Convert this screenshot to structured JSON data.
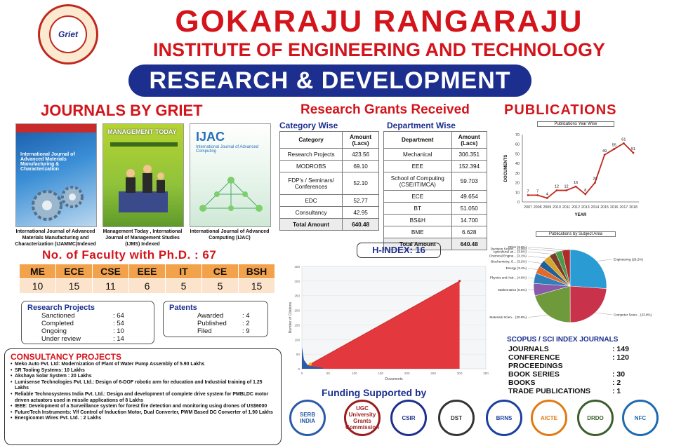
{
  "header": {
    "logo_text": "Griet",
    "title": "GOKARAJU RANGARAJU",
    "subtitle": "INSTITUTE OF ENGINEERING AND TECHNOLOGY",
    "banner": "RESEARCH & DEVELOPMENT"
  },
  "journals": {
    "heading": "JOURNALS BY GRIET",
    "covers": [
      {
        "title": "International Journal of Advanced Materials Manufacturing & Characterization",
        "caption": "International Journal of Advanced Materials Manufacturing and Characterization (IJAMMC)Indexed"
      },
      {
        "title": "MANAGEMENT TODAY",
        "caption": "Management Today , International Journal of Management Studies (IJMS) Indexed"
      },
      {
        "title": "IJAC",
        "sub": "International Journal of Advanced Computing",
        "caption": "International Journal of Advanced Computing (IJAC)"
      }
    ]
  },
  "grants": {
    "heading": "Research Grants Received",
    "category_heading": "Category Wise",
    "department_heading": "Department Wise",
    "category_table": {
      "headers": [
        "Category",
        "Amount (Lacs)"
      ],
      "rows": [
        [
          "Research Projects",
          "423.56"
        ],
        [
          "MODROBS",
          "69.10"
        ],
        [
          "FDP's / Seminars/ Conferences",
          "52.10"
        ],
        [
          "EDC",
          "52.77"
        ],
        [
          "Consultancy",
          "42.95"
        ]
      ],
      "total": [
        "Total Amount",
        "640.48"
      ]
    },
    "department_table": {
      "headers": [
        "Department",
        "Amount (Lacs)"
      ],
      "rows": [
        [
          "Mechanical",
          "306.351"
        ],
        [
          "EEE",
          "152.394"
        ],
        [
          "School of Computing (CSE/IT/MCA)",
          "59.703"
        ],
        [
          "ECE",
          "49.654"
        ],
        [
          "BT",
          "51.050"
        ],
        [
          "BS&H",
          "14.700"
        ],
        [
          "BME",
          "6.628"
        ]
      ],
      "total": [
        "Total Amount",
        "640.48"
      ]
    }
  },
  "publications": {
    "heading": "PUBLICATIONS"
  },
  "faculty": {
    "heading": "No. of Faculty with Ph.D. : 67",
    "depts": [
      "ME",
      "ECE",
      "CSE",
      "EEE",
      "IT",
      "CE",
      "BSH"
    ],
    "counts": [
      "10",
      "15",
      "11",
      "6",
      "5",
      "5",
      "15"
    ]
  },
  "research_projects": {
    "heading": "Research Projects",
    "items": [
      [
        "Sanctioned",
        ": 64"
      ],
      [
        "Completed",
        ": 54"
      ],
      [
        "Ongoing",
        ": 10"
      ],
      [
        "Under review",
        ": 14"
      ]
    ]
  },
  "patents": {
    "heading": "Patents",
    "items": [
      [
        "Awarded",
        ": 4"
      ],
      [
        "Published",
        ": 2"
      ],
      [
        "Filed",
        ": 9"
      ]
    ]
  },
  "consultancy": {
    "heading": "CONSULTANCY PROJECTS",
    "items": [
      "Meko Auto Pvt. Ltd: Modernization of Plant of Water Pump Assembly of 5.90 Lakhs",
      "SR Tooling Systems: 10 Lakhs",
      "Akshaya Solar System : 20 Lakhs",
      "Lumisense Technologies Pvt. Ltd.: Design of 6-DOF robotic arm for education and Industrial training of 1.25 Lakhs",
      "Reliable Technosystems India Pvt. Ltd.: Design and development of complete drive system for PMBLDC motor driven actuators used in missile applications of 8 Lakhs",
      "IEEE: Development of a Surveillance system for forest fire detection and monitoring using drones of US$6000",
      "FutureTech Instruments: V/f Control of Induction Motor, Dual Converter, PWM Based DC Converter of 1.90 Lakhs",
      "Energicomm Wires Pvt. Ltd. : 2 Lakhs"
    ]
  },
  "hindex": {
    "label": "H-INDEX: 16"
  },
  "funding": {
    "heading": "Funding Supported by",
    "logos": [
      {
        "text": "SERB INDIA",
        "color": "#2a5aa8"
      },
      {
        "text": "UGC University Grants Commission",
        "color": "#9b1c1c"
      },
      {
        "text": "CSIR",
        "color": "#1c2f8f"
      },
      {
        "text": "DST",
        "color": "#333333"
      },
      {
        "text": "BRNS",
        "color": "#1c3fa0"
      },
      {
        "text": "AICTE",
        "color": "#e07b12"
      },
      {
        "text": "DRDO",
        "color": "#3b5e2b"
      },
      {
        "text": "NFC",
        "color": "#1c6ab0"
      }
    ]
  },
  "scopus": {
    "heading": "SCOPUS / SCI INDEX JOURNALS",
    "items": [
      [
        "JOURNALS",
        ": 149"
      ],
      [
        "CONFERENCE PROCEEDINGS",
        ": 120"
      ],
      [
        "BOOK SERIES",
        ": 30"
      ],
      [
        "BOOKS",
        ": 2"
      ],
      [
        "TRADE PUBLICATIONS",
        ": 1"
      ]
    ]
  },
  "chart_data": [
    {
      "type": "line",
      "title": "Publications Year Wise",
      "xlabel": "YEAR",
      "ylabel": "DOCUMENTS",
      "x": [
        "2007",
        "2008",
        "2009",
        "2010",
        "2011",
        "2012",
        "2013",
        "2014",
        "2015",
        "2016",
        "2017",
        "2018"
      ],
      "values": [
        7,
        7,
        4,
        12,
        12,
        16,
        8,
        20,
        49,
        55,
        61,
        51
      ],
      "ylim": [
        0,
        70
      ],
      "yticks": [
        0,
        10,
        20,
        30,
        40,
        50,
        60,
        70
      ],
      "color": "#c0281e"
    },
    {
      "type": "pie",
      "title": "Publications by Subject Area",
      "labels": [
        "Engineering (26.2%)",
        "Computer Scien... (23.9%)",
        "Materials Scien... (20.8%)",
        "Mathematics (5.5%)",
        "Physics and Astr... (4.6%)",
        "Energy (3.4%)",
        "Biochemistry, G... (3.2%)",
        "Chemical Engine... (3.1%)",
        "Agricultural an... (3.0%)",
        "Decision Scienc... (3.0%)",
        "Other (3.6%)"
      ],
      "values": [
        26.2,
        23.9,
        20.8,
        5.5,
        4.6,
        3.4,
        3.2,
        3.1,
        3.0,
        3.0,
        3.6
      ],
      "colors": [
        "#2b9bd3",
        "#c8324a",
        "#6f9a3c",
        "#8a5aa8",
        "#2f7fb8",
        "#e06a2a",
        "#1f5f9a",
        "#d8a42a",
        "#7a3a2a",
        "#4a9a4a",
        "#b02a2a"
      ]
    },
    {
      "type": "area",
      "title": "",
      "xlabel": "Documents",
      "ylabel": "Number of Citations",
      "xticks": [
        0,
        50,
        100,
        150,
        200,
        250,
        300,
        350
      ],
      "yticks": [
        0,
        50,
        100,
        150,
        200,
        250,
        300,
        350
      ],
      "xlim": [
        0,
        350
      ],
      "ylim": [
        0,
        350
      ],
      "h_index": 16,
      "line": [
        [
          0,
          0
        ],
        [
          300,
          300
        ]
      ]
    }
  ]
}
